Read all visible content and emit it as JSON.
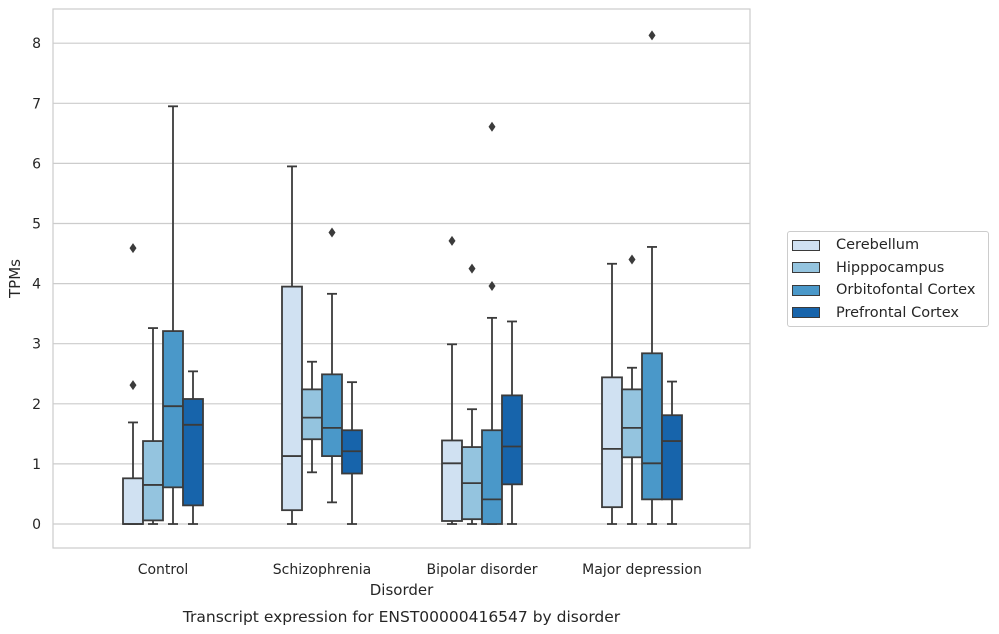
{
  "chart_data": {
    "type": "box",
    "title": "Transcript expression for ENST00000416547 by disorder",
    "xlabel": "Disorder",
    "ylabel": "TPMs",
    "categories": [
      "Control",
      "Schizophrenia",
      "Bipolar disorder",
      "Major depression"
    ],
    "yticks": [
      "0",
      "1",
      "2",
      "3",
      "4",
      "5",
      "6",
      "7",
      "8"
    ],
    "ylim": [
      -0.4,
      8.55
    ],
    "grid": "horizontal",
    "legend_position": "right",
    "series": [
      {
        "name": "Cerebellum",
        "color": "#d0e1f2",
        "boxes": [
          {
            "whislo": 0.0,
            "q1": 0.0,
            "med": 0.0,
            "q3": 0.76,
            "whishi": 1.69,
            "fliers": [
              2.31,
              4.59
            ]
          },
          {
            "whislo": 0.0,
            "q1": 0.23,
            "med": 1.13,
            "q3": 3.95,
            "whishi": 5.95,
            "fliers": []
          },
          {
            "whislo": 0.0,
            "q1": 0.05,
            "med": 1.01,
            "q3": 1.39,
            "whishi": 2.99,
            "fliers": [
              4.71
            ]
          },
          {
            "whislo": 0.0,
            "q1": 0.28,
            "med": 1.25,
            "q3": 2.44,
            "whishi": 4.33,
            "fliers": []
          }
        ]
      },
      {
        "name": "Hipppocampus",
        "color": "#94c4df",
        "boxes": [
          {
            "whislo": 0.0,
            "q1": 0.06,
            "med": 0.65,
            "q3": 1.38,
            "whishi": 3.26,
            "fliers": []
          },
          {
            "whislo": 0.86,
            "q1": 1.41,
            "med": 1.77,
            "q3": 2.24,
            "whishi": 2.7,
            "fliers": []
          },
          {
            "whislo": 0.0,
            "q1": 0.08,
            "med": 0.68,
            "q3": 1.28,
            "whishi": 1.91,
            "fliers": [
              4.25
            ]
          },
          {
            "whislo": 0.0,
            "q1": 1.11,
            "med": 1.6,
            "q3": 2.24,
            "whishi": 2.6,
            "fliers": [
              4.4
            ]
          }
        ]
      },
      {
        "name": "Orbitofontal Cortex",
        "color": "#4a98c9",
        "boxes": [
          {
            "whislo": 0.0,
            "q1": 0.61,
            "med": 1.96,
            "q3": 3.21,
            "whishi": 6.95,
            "fliers": []
          },
          {
            "whislo": 0.36,
            "q1": 1.13,
            "med": 1.6,
            "q3": 2.49,
            "whishi": 3.83,
            "fliers": [
              4.85
            ]
          },
          {
            "whislo": 0.0,
            "q1": 0.0,
            "med": 0.41,
            "q3": 1.56,
            "whishi": 3.43,
            "fliers": [
              3.96,
              6.61
            ]
          },
          {
            "whislo": 0.0,
            "q1": 0.41,
            "med": 1.01,
            "q3": 2.84,
            "whishi": 4.61,
            "fliers": [
              8.13
            ]
          }
        ]
      },
      {
        "name": "Prefrontal Cortex",
        "color": "#1764ab",
        "boxes": [
          {
            "whislo": 0.0,
            "q1": 0.31,
            "med": 1.65,
            "q3": 2.08,
            "whishi": 2.54,
            "fliers": []
          },
          {
            "whislo": 0.0,
            "q1": 0.84,
            "med": 1.21,
            "q3": 1.56,
            "whishi": 2.36,
            "fliers": []
          },
          {
            "whislo": 0.0,
            "q1": 0.66,
            "med": 1.29,
            "q3": 2.14,
            "whishi": 3.37,
            "fliers": []
          },
          {
            "whislo": 0.0,
            "q1": 0.41,
            "med": 1.38,
            "q3": 1.81,
            "whishi": 2.37,
            "fliers": []
          }
        ]
      }
    ]
  }
}
